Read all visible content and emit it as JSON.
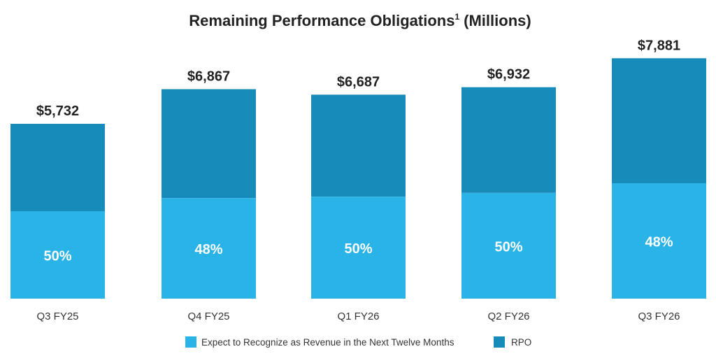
{
  "chart_data": {
    "type": "bar",
    "stacked": true,
    "title": "Remaining Performance Obligations",
    "title_superscript": "1",
    "title_suffix": "(Millions)",
    "categories": [
      "Q3 FY25",
      "Q4 FY25",
      "Q1 FY26",
      "Q2 FY26",
      "Q3 FY26"
    ],
    "totals": [
      5732,
      6867,
      6687,
      6932,
      7881
    ],
    "total_labels": [
      "$5,732",
      "$6,867",
      "$6,687",
      "$6,932",
      "$7,881"
    ],
    "ntm_percent": [
      50,
      48,
      50,
      50,
      48
    ],
    "percent_labels": [
      "50%",
      "48%",
      "50%",
      "50%",
      "48%"
    ],
    "series": [
      {
        "name": "Expect to Recognize as Revenue in the Next Twelve Months",
        "color": "#29b3e7"
      },
      {
        "name": "RPO",
        "color": "#178cba"
      }
    ],
    "ylim": [
      0,
      7881
    ],
    "grid": false,
    "legend_position": "bottom"
  }
}
